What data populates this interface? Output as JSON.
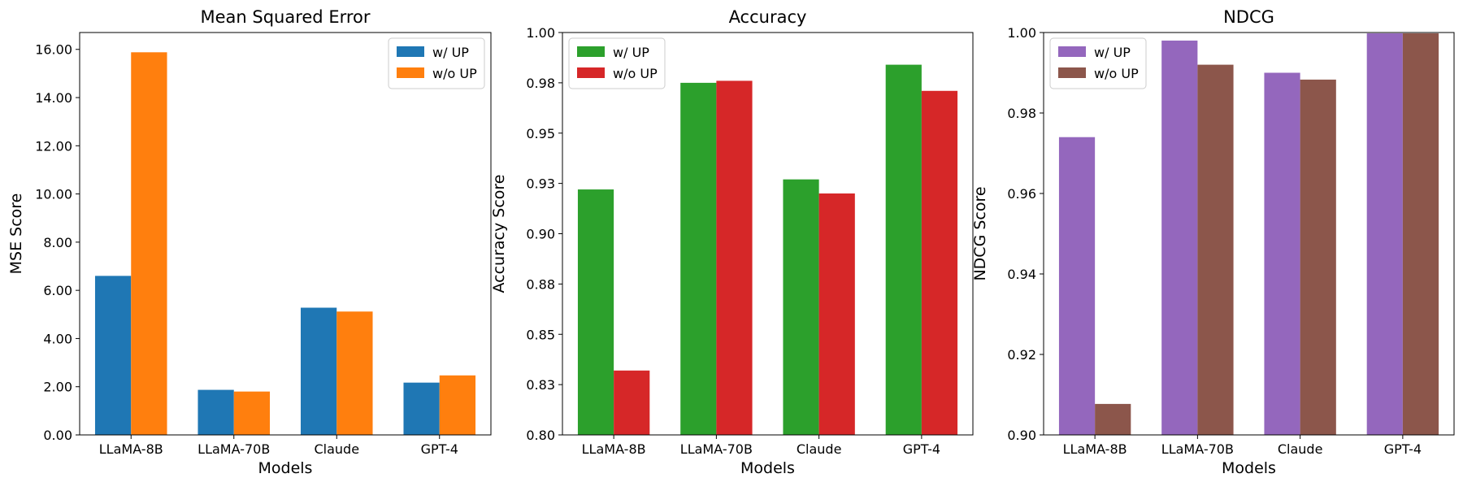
{
  "chart_data": [
    {
      "type": "bar",
      "title": "Mean Squared Error",
      "xlabel": "Models",
      "ylabel": "MSE Score",
      "categories": [
        "LLaMA-8B",
        "LLaMA-70B",
        "Claude",
        "GPT-4"
      ],
      "series": [
        {
          "name": "w/ UP",
          "color": "#1f77b4",
          "values": [
            6.6,
            1.87,
            5.28,
            2.17
          ]
        },
        {
          "name": "w/o UP",
          "color": "#ff7f0e",
          "values": [
            15.88,
            1.8,
            5.12,
            2.47
          ]
        }
      ],
      "ylim": [
        0,
        16.7
      ],
      "yticks": [
        0,
        2,
        4,
        6,
        8,
        10,
        12,
        14,
        16
      ],
      "ytick_labels": [
        "0.00",
        "2.00",
        "4.00",
        "6.00",
        "8.00",
        "10.00",
        "12.00",
        "14.00",
        "16.00"
      ],
      "legend": "upper-right",
      "grid": false
    },
    {
      "type": "bar",
      "title": "Accuracy",
      "xlabel": "Models",
      "ylabel": "Accuracy Score",
      "categories": [
        "LLaMA-8B",
        "LLaMA-70B",
        "Claude",
        "GPT-4"
      ],
      "series": [
        {
          "name": "w/ UP",
          "color": "#2ca02c",
          "values": [
            0.922,
            0.975,
            0.927,
            0.984
          ]
        },
        {
          "name": "w/o UP",
          "color": "#d62728",
          "values": [
            0.832,
            0.976,
            0.92,
            0.971
          ]
        }
      ],
      "ylim": [
        0.8,
        1.0
      ],
      "yticks": [
        0.8,
        0.825,
        0.85,
        0.875,
        0.9,
        0.925,
        0.95,
        0.975,
        1.0
      ],
      "ytick_labels": [
        "0.80",
        "0.83",
        "0.85",
        "0.88",
        "0.90",
        "0.93",
        "0.95",
        "0.98",
        "1.00"
      ],
      "legend": "upper-left",
      "grid": false
    },
    {
      "type": "bar",
      "title": "NDCG",
      "xlabel": "Models",
      "ylabel": "NDCG Score",
      "categories": [
        "LLaMA-8B",
        "LLaMA-70B",
        "Claude",
        "GPT-4"
      ],
      "series": [
        {
          "name": "w/ UP",
          "color": "#9467bd",
          "values": [
            0.974,
            0.998,
            0.99,
            0.9998
          ]
        },
        {
          "name": "w/o UP",
          "color": "#8c564b",
          "values": [
            0.9077,
            0.992,
            0.9883,
            0.9998
          ]
        }
      ],
      "ylim": [
        0.9,
        1.0
      ],
      "yticks": [
        0.9,
        0.92,
        0.94,
        0.96,
        0.98,
        1.0
      ],
      "ytick_labels": [
        "0.90",
        "0.92",
        "0.94",
        "0.96",
        "0.98",
        "1.00"
      ],
      "legend": "upper-left",
      "grid": false
    }
  ]
}
